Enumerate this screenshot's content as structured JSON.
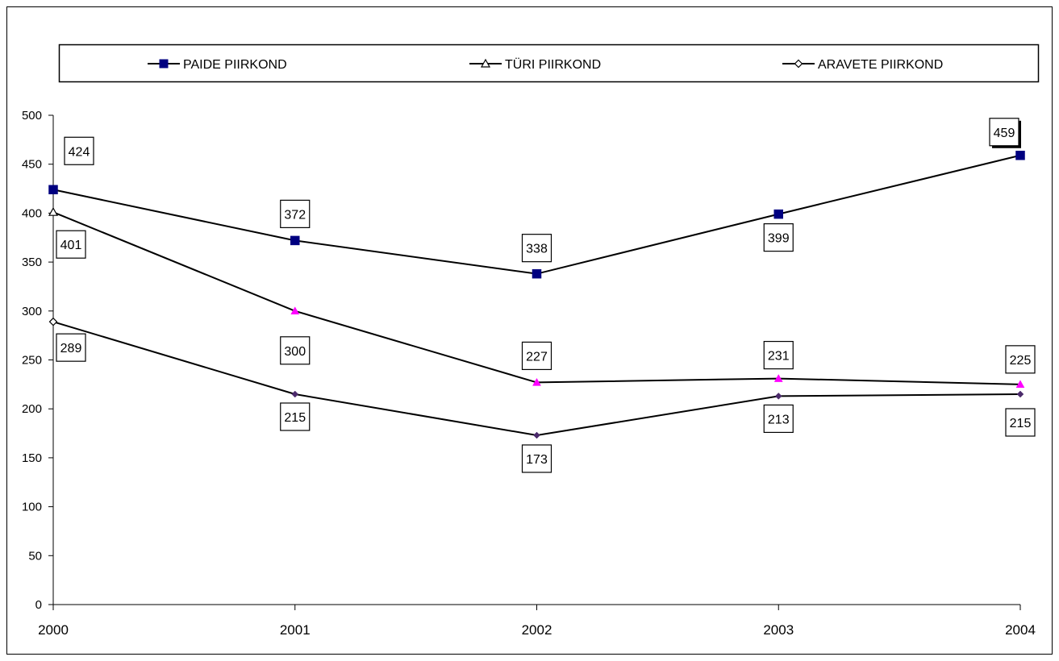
{
  "chart_data": {
    "type": "line",
    "title": "",
    "xlabel": "",
    "ylabel": "",
    "categories": [
      "2000",
      "2001",
      "2002",
      "2003",
      "2004"
    ],
    "ylim": [
      0,
      500
    ],
    "yticks": [
      0,
      50,
      100,
      150,
      200,
      250,
      300,
      350,
      400,
      450,
      500
    ],
    "grid": false,
    "legend_position": "top",
    "series": [
      {
        "name": "PAIDE PIIRKOND",
        "values": [
          424,
          372,
          338,
          399,
          459
        ],
        "marker": "square",
        "marker_color": "#000080",
        "line_color": "#000000"
      },
      {
        "name": "TÜRI PIIRKOND",
        "values": [
          401,
          300,
          227,
          231,
          225
        ],
        "marker": "triangle",
        "marker_color": "#ff00ff",
        "line_color": "#000000"
      },
      {
        "name": "ARAVETE PIIRKOND",
        "values": [
          289,
          215,
          173,
          213,
          215
        ],
        "marker": "diamond",
        "marker_color": "#4b2a6b",
        "line_color": "#000000"
      }
    ]
  }
}
